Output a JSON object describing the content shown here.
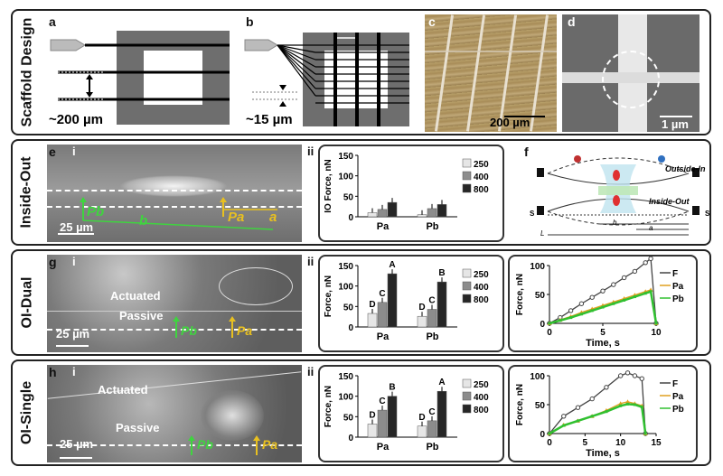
{
  "rows": [
    {
      "label": "Scaffold Design"
    },
    {
      "label": "Inside-Out"
    },
    {
      "label": "OI-Dual"
    },
    {
      "label": "OI-Single"
    }
  ],
  "row1": {
    "a": {
      "letter": "a",
      "scale": "~200 µm"
    },
    "b": {
      "letter": "b",
      "scale": "~15 µm",
      "L": "L"
    },
    "c": {
      "letter": "c",
      "scale": "200 µm"
    },
    "d": {
      "letter": "d",
      "scale": "1 µm"
    }
  },
  "row2": {
    "e": {
      "letter": "e",
      "sub": "i",
      "scale": "25 µm",
      "Pb": "Pb",
      "Pa": "Pa",
      "b": "b",
      "a": "a"
    },
    "ii": {
      "sub": "ii"
    },
    "f": {
      "letter": "f",
      "outside_in": "Outside-In",
      "inside_out": "Inside-Out",
      "F": "F",
      "Pa": "Pa",
      "Pb": "Pb",
      "da": "δa",
      "db": "δb",
      "L": "L",
      "b": "b",
      "a": "a",
      "S": "S"
    }
  },
  "row3": {
    "g": {
      "letter": "g",
      "sub": "i",
      "actuated": "Actuated",
      "passive": "Passive",
      "scale": "25 µm",
      "Pb": "Pb",
      "Pa": "Pa"
    },
    "ii": "ii",
    "iii": "iii"
  },
  "row4": {
    "h": {
      "letter": "h",
      "sub": "i",
      "actuated": "Actuated",
      "passive": "Passive",
      "scale": "25 µm",
      "Pb": "Pb",
      "Pa": "Pa"
    },
    "ii": "ii",
    "iii": "iii"
  },
  "chart_data": [
    {
      "type": "bar",
      "id": "io-force",
      "ylabel": "IO Force, nN",
      "ylim": [
        0,
        150
      ],
      "yticks": [
        0,
        50,
        100,
        150
      ],
      "categories": [
        "Pa",
        "Pb"
      ],
      "series": [
        {
          "name": "250",
          "color": "#e6e6e6",
          "values": [
            10,
            5
          ]
        },
        {
          "name": "400",
          "color": "#8c8c8c",
          "values": [
            18,
            20
          ]
        },
        {
          "name": "800",
          "color": "#262626",
          "values": [
            35,
            30
          ]
        }
      ],
      "letters": []
    },
    {
      "type": "bar",
      "id": "dual-force",
      "ylabel": "Force, nN",
      "ylim": [
        0,
        150
      ],
      "yticks": [
        0,
        50,
        100,
        150
      ],
      "categories": [
        "Pa",
        "Pb"
      ],
      "series": [
        {
          "name": "250",
          "color": "#e6e6e6",
          "values": [
            33,
            26
          ]
        },
        {
          "name": "400",
          "color": "#8c8c8c",
          "values": [
            60,
            43
          ]
        },
        {
          "name": "800",
          "color": "#262626",
          "values": [
            130,
            110
          ]
        }
      ],
      "letters": [
        [
          "D",
          "C",
          "A"
        ],
        [
          "D",
          "C",
          "B"
        ]
      ]
    },
    {
      "type": "bar",
      "id": "single-force",
      "ylabel": "Force, nN",
      "ylim": [
        0,
        150
      ],
      "yticks": [
        0,
        50,
        100,
        150
      ],
      "categories": [
        "Pa",
        "Pb"
      ],
      "series": [
        {
          "name": "250",
          "color": "#e6e6e6",
          "values": [
            32,
            27
          ]
        },
        {
          "name": "400",
          "color": "#8c8c8c",
          "values": [
            66,
            40
          ]
        },
        {
          "name": "800",
          "color": "#262626",
          "values": [
            100,
            112
          ]
        }
      ],
      "letters": [
        [
          "D",
          "C",
          "B"
        ],
        [
          "D",
          "C",
          "A"
        ]
      ]
    },
    {
      "type": "line",
      "id": "dual-time",
      "xlabel": "Time, s",
      "ylabel": "Force, nN",
      "xlim": [
        0,
        10
      ],
      "ylim": [
        0,
        100
      ],
      "xticks": [
        0,
        5,
        10
      ],
      "yticks": [
        0,
        50,
        100
      ],
      "series": [
        {
          "name": "F",
          "color": "#444444",
          "marker": "circle",
          "x": [
            0,
            1,
            2,
            3,
            4,
            5,
            6,
            7,
            8,
            9,
            9.5,
            10
          ],
          "y": [
            0,
            10,
            22,
            34,
            45,
            56,
            67,
            79,
            90,
            105,
            112,
            0
          ]
        },
        {
          "name": "Pa",
          "color": "#e0a020",
          "marker": "triangle",
          "x": [
            0,
            1,
            2,
            3,
            4,
            5,
            6,
            7,
            8,
            9,
            9.5,
            10
          ],
          "y": [
            0,
            6,
            12,
            19,
            25,
            31,
            37,
            43,
            49,
            55,
            58,
            0
          ]
        },
        {
          "name": "Pb",
          "color": "#30c030",
          "marker": "cross",
          "x": [
            0,
            1,
            2,
            3,
            4,
            5,
            6,
            7,
            8,
            9,
            9.5,
            10
          ],
          "y": [
            0,
            5,
            10,
            16,
            22,
            28,
            34,
            40,
            46,
            52,
            55,
            0
          ]
        }
      ]
    },
    {
      "type": "line",
      "id": "single-time",
      "xlabel": "Time, s",
      "ylabel": "Force, nN",
      "xlim": [
        0,
        15
      ],
      "ylim": [
        0,
        100
      ],
      "xticks": [
        0,
        5,
        10,
        15
      ],
      "yticks": [
        0,
        50,
        100
      ],
      "series": [
        {
          "name": "F",
          "color": "#444444",
          "marker": "circle",
          "x": [
            0,
            2,
            4,
            6,
            8,
            10,
            11,
            12,
            13,
            13.5
          ],
          "y": [
            0,
            30,
            45,
            60,
            80,
            100,
            105,
            100,
            95,
            0
          ]
        },
        {
          "name": "Pa",
          "color": "#e0a020",
          "marker": "triangle",
          "x": [
            0,
            2,
            4,
            6,
            8,
            10,
            11,
            12,
            13,
            13.5
          ],
          "y": [
            0,
            15,
            22,
            30,
            40,
            52,
            55,
            52,
            48,
            0
          ]
        },
        {
          "name": "Pb",
          "color": "#30c030",
          "marker": "cross",
          "x": [
            0,
            2,
            4,
            6,
            8,
            10,
            11,
            12,
            13,
            13.5
          ],
          "y": [
            0,
            14,
            22,
            30,
            38,
            48,
            51,
            50,
            46,
            0
          ]
        }
      ]
    }
  ]
}
